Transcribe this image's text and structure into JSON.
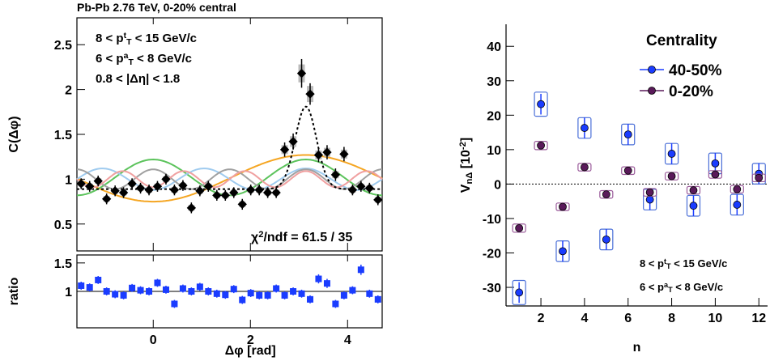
{
  "chart_data": [
    {
      "type": "scatter",
      "title": "Pb-Pb 2.76 TeV, 0-20% central",
      "ylabel": [
        {
          "t": "C(Δφ)"
        }
      ],
      "xlim": [
        -1.571,
        4.712
      ],
      "ylim": [
        0.2,
        2.8
      ],
      "yticks": [
        0.5,
        1,
        1.5,
        2,
        2.5
      ],
      "xticks": [
        0,
        2,
        4
      ],
      "xtick_labels": false,
      "x": [
        -1.484,
        -1.309,
        -1.134,
        -0.96,
        -0.785,
        -0.611,
        -0.436,
        -0.262,
        -0.087,
        0.087,
        0.262,
        0.436,
        0.611,
        0.785,
        0.96,
        1.134,
        1.309,
        1.484,
        1.658,
        1.833,
        2.007,
        2.182,
        2.356,
        2.531,
        2.705,
        2.88,
        3.054,
        3.229,
        3.403,
        3.578,
        3.752,
        3.927,
        4.102,
        4.276,
        4.451,
        4.625
      ],
      "series": [
        {
          "color": "#000000",
          "marker": "diamond",
          "box_color": "#bbbbbb",
          "box_fill": true,
          "values": [
            0.95,
            0.92,
            0.98,
            0.78,
            0.87,
            0.85,
            0.95,
            0.9,
            0.88,
            0.92,
            1.0,
            0.88,
            0.93,
            0.68,
            0.87,
            0.92,
            0.82,
            0.82,
            0.85,
            0.72,
            0.88,
            0.88,
            0.85,
            0.85,
            1.33,
            1.42,
            2.18,
            1.95,
            1.27,
            1.3,
            1.05,
            1.28,
            0.88,
            0.92,
            0.9,
            0.77
          ],
          "errors": [
            0.06,
            0.06,
            0.06,
            0.06,
            0.06,
            0.06,
            0.06,
            0.06,
            0.06,
            0.06,
            0.06,
            0.06,
            0.06,
            0.06,
            0.06,
            0.06,
            0.06,
            0.06,
            0.06,
            0.06,
            0.06,
            0.06,
            0.06,
            0.06,
            0.08,
            0.09,
            0.16,
            0.12,
            0.08,
            0.08,
            0.07,
            0.08,
            0.06,
            0.06,
            0.06,
            0.06
          ],
          "sys": [
            0.03,
            0.03,
            0.03,
            0.03,
            0.03,
            0.03,
            0.03,
            0.03,
            0.03,
            0.03,
            0.03,
            0.03,
            0.03,
            0.03,
            0.03,
            0.03,
            0.03,
            0.03,
            0.03,
            0.03,
            0.03,
            0.03,
            0.03,
            0.03,
            0.05,
            0.06,
            0.1,
            0.09,
            0.05,
            0.05,
            0.04,
            0.05,
            0.03,
            0.03,
            0.03,
            0.03
          ]
        }
      ],
      "curves": [
        {
          "color": "#f5a623",
          "n": 1,
          "baseline": 1.01,
          "amplitude": -0.26
        },
        {
          "color": "#5cc35c",
          "n": 2,
          "baseline": 1.02,
          "amplitude": 0.2
        },
        {
          "color": "#9fcbef",
          "n": 3,
          "baseline": 1.0,
          "amplitude": -0.12
        },
        {
          "color": "#a0a0a0",
          "n": 4,
          "baseline": 1.0,
          "amplitude": 0.11
        },
        {
          "color": "#f0a0a0",
          "n": 5,
          "baseline": 1.0,
          "amplitude": -0.09
        }
      ],
      "fit": {
        "color": "#000000",
        "baseline": 0.89,
        "peak": 0.92,
        "center": 3.1416,
        "width": 0.22
      },
      "annotations": [
        [
          {
            "t": "8 < p"
          },
          {
            "t": "t",
            "s": "sup"
          },
          {
            "t": "T",
            "s": "sub"
          },
          {
            "t": " < 15 GeV/c"
          }
        ],
        [
          {
            "t": "6 < p"
          },
          {
            "t": "a",
            "s": "sup"
          },
          {
            "t": "T",
            "s": "sub"
          },
          {
            "t": " < 8 GeV/c"
          }
        ],
        [
          {
            "t": "0.8 < |Δη| < 1.8"
          }
        ]
      ],
      "chi2": [
        {
          "t": "χ"
        },
        {
          "t": "2",
          "s": "sup"
        },
        {
          "t": "/ndf = 61.5 / 35"
        }
      ]
    },
    {
      "type": "scatter",
      "ylabel": [
        {
          "t": "ratio"
        }
      ],
      "xlabel": [
        {
          "t": "Δφ [rad]"
        }
      ],
      "xlim": [
        -1.571,
        4.712
      ],
      "ylim": [
        0.36,
        1.64
      ],
      "yticks": [
        1,
        1.5
      ],
      "xticks": [
        0,
        2,
        4
      ],
      "xtick_labels": true,
      "ref_line": 1,
      "x": [
        -1.484,
        -1.309,
        -1.134,
        -0.96,
        -0.785,
        -0.611,
        -0.436,
        -0.262,
        -0.087,
        0.087,
        0.262,
        0.436,
        0.611,
        0.785,
        0.96,
        1.134,
        1.309,
        1.484,
        1.658,
        1.833,
        2.007,
        2.182,
        2.356,
        2.531,
        2.705,
        2.88,
        3.054,
        3.229,
        3.403,
        3.578,
        3.752,
        3.927,
        4.102,
        4.276,
        4.451,
        4.625
      ],
      "series": [
        {
          "color": "#1a3cff",
          "marker": "square",
          "values": [
            1.1,
            1.07,
            1.2,
            1.0,
            0.95,
            0.93,
            1.06,
            1.02,
            1.0,
            1.15,
            1.03,
            0.78,
            1.05,
            1.0,
            1.08,
            1.0,
            0.96,
            0.94,
            1.04,
            0.85,
            0.97,
            0.93,
            0.93,
            1.05,
            0.93,
            1.0,
            0.96,
            0.86,
            1.22,
            1.14,
            0.78,
            0.93,
            1.02,
            1.38,
            0.96,
            0.86
          ],
          "errors": [
            0.07,
            0.07,
            0.07,
            0.07,
            0.07,
            0.07,
            0.07,
            0.07,
            0.07,
            0.07,
            0.07,
            0.07,
            0.07,
            0.07,
            0.07,
            0.07,
            0.07,
            0.07,
            0.07,
            0.07,
            0.07,
            0.07,
            0.07,
            0.07,
            0.07,
            0.07,
            0.07,
            0.07,
            0.08,
            0.08,
            0.07,
            0.07,
            0.07,
            0.09,
            0.07,
            0.07
          ]
        }
      ]
    },
    {
      "type": "scatter",
      "ylabel": [
        {
          "t": "V"
        },
        {
          "t": "nΔ",
          "s": "sub"
        },
        {
          "t": " [10"
        },
        {
          "t": "-2",
          "s": "sup"
        },
        {
          "t": "]"
        }
      ],
      "xlabel": [
        {
          "t": "n"
        }
      ],
      "xlim": [
        0.4,
        12.4
      ],
      "ylim": [
        -35.4,
        46.4
      ],
      "yticks": [
        -30,
        -20,
        -10,
        0,
        10,
        20,
        30,
        40
      ],
      "xticks": [
        2,
        4,
        6,
        8,
        10,
        12
      ],
      "xtick_labels": true,
      "zero_line": true,
      "legend": {
        "title": "Centrality",
        "loc": "upper right"
      },
      "x": [
        1,
        2,
        3,
        4,
        5,
        6,
        7,
        8,
        9,
        10,
        11,
        12
      ],
      "series": [
        {
          "name": "40-50%",
          "color": "#1a3cff",
          "box_color": "#4a6fd8",
          "marker": "circle",
          "values": [
            -31.5,
            23.2,
            -19.5,
            16.3,
            -16.1,
            14.4,
            -4.5,
            8.8,
            -6.3,
            6.0,
            -6.0,
            3.0
          ],
          "errors": [
            3,
            3,
            3,
            3,
            3,
            3,
            3,
            3,
            3,
            3,
            3,
            3
          ],
          "sys": [
            3.5,
            3.5,
            3,
            3,
            3,
            3,
            3,
            3,
            3,
            3,
            3,
            3
          ]
        },
        {
          "name": "0-20%",
          "color": "#5a1a5a",
          "box_color": "#9a5a9a",
          "marker": "circle",
          "values": [
            -12.8,
            11.2,
            -6.6,
            4.9,
            -3.0,
            3.9,
            -2.4,
            2.3,
            -1.8,
            2.8,
            -1.5,
            1.8
          ],
          "errors": [
            0.6,
            0.6,
            0.6,
            0.6,
            0.6,
            0.6,
            0.6,
            0.6,
            0.6,
            0.6,
            0.6,
            0.6
          ],
          "sys": [
            1.2,
            1.2,
            1.1,
            1.1,
            1.1,
            1.1,
            1.1,
            1.1,
            1.1,
            1.1,
            1.1,
            1.1
          ]
        }
      ],
      "annotations": [
        [
          {
            "t": "8 < p"
          },
          {
            "t": "t",
            "s": "sup"
          },
          {
            "t": "T",
            "s": "sub"
          },
          {
            "t": " < 15 GeV/c"
          }
        ],
        [
          {
            "t": "6 < p"
          },
          {
            "t": "a",
            "s": "sup"
          },
          {
            "t": "T",
            "s": "sub"
          },
          {
            "t": " < 8 GeV/c"
          }
        ]
      ]
    }
  ]
}
